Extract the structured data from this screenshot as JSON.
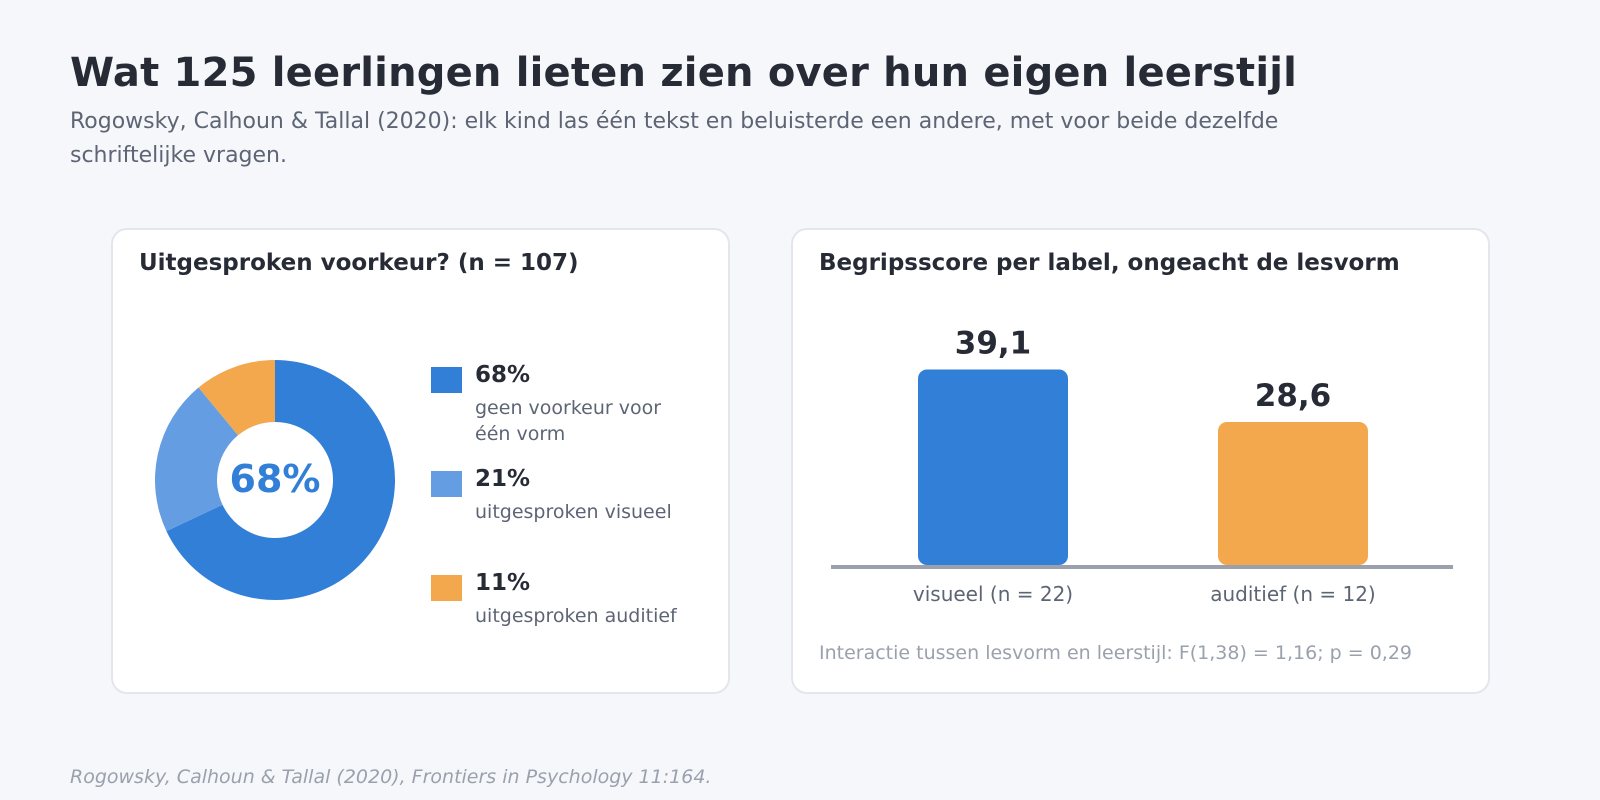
{
  "header": {
    "title": "Wat 125 leerlingen lieten zien over hun eigen leerstijl",
    "subtitle": "Rogowsky, Calhoun & Tallal (2020): elk kind las één tekst en beluisterde een andere, met voor beide dezelfde schriftelijke vragen."
  },
  "chart_data": [
    {
      "type": "pie",
      "title": "Uitgesproken voorkeur? (n = 107)",
      "center_label": "68%",
      "slices": [
        {
          "label": "geen voorkeur voor één vorm",
          "value": 68,
          "display": "68%",
          "color": "#327fd7"
        },
        {
          "label": "uitgesproken visueel",
          "value": 21,
          "display": "21%",
          "color": "#659de3"
        },
        {
          "label": "uitgesproken auditief",
          "value": 11,
          "display": "11%",
          "color": "#f3a84e"
        }
      ]
    },
    {
      "type": "bar",
      "title": "Begripsscore per label, ongeacht de lesvorm",
      "categories": [
        "visueel (n = 22)",
        "auditief (n = 12)"
      ],
      "values": [
        39.1,
        28.6
      ],
      "value_labels": [
        "39,1",
        "28,6"
      ],
      "colors": [
        "#327fd7",
        "#f3a84e"
      ],
      "ylim": [
        0,
        43
      ],
      "note": "Interactie tussen lesvorm en leerstijl: F(1,38) = 1,16; p = 0,29"
    }
  ],
  "footer": {
    "source": "Rogowsky, Calhoun & Tallal (2020), Frontiers in Psychology 11:164."
  }
}
